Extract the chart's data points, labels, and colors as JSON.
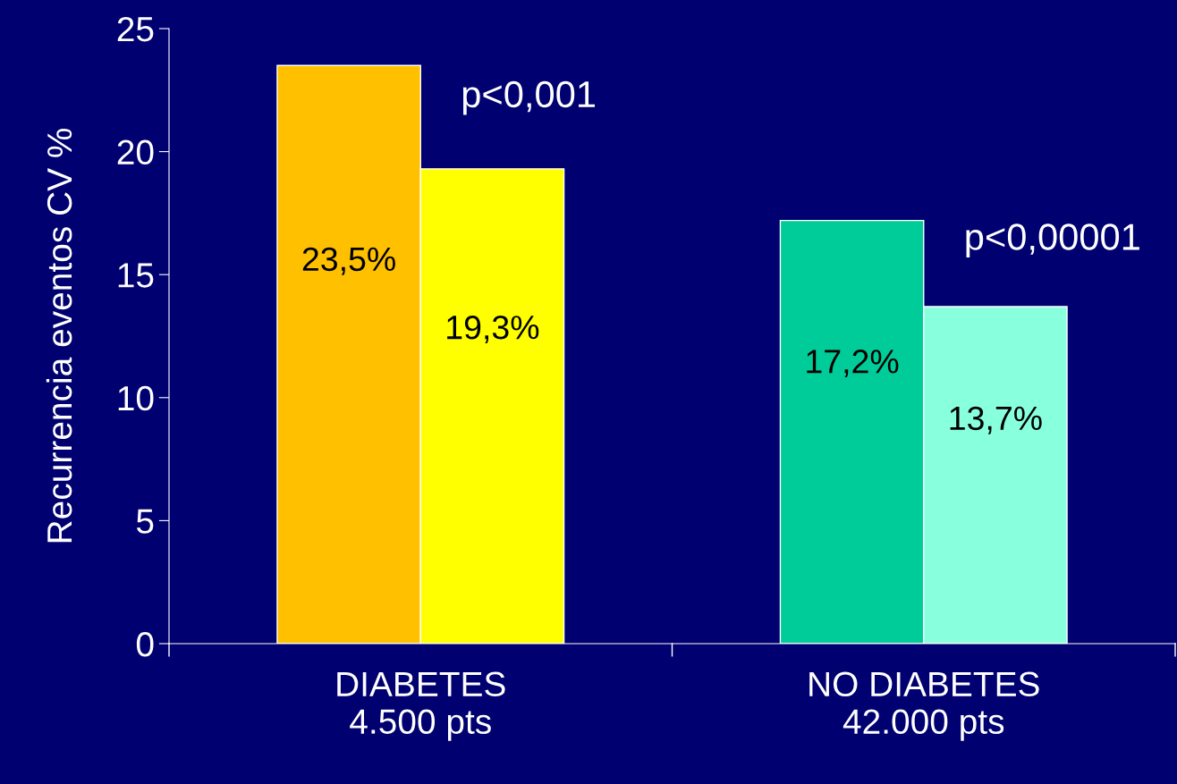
{
  "chart_data": {
    "type": "bar",
    "ylabel": "Recurrencia eventos CV %",
    "categories": [
      "DIABETES\n4.500 pts",
      "NO DIABETES\n42.000 pts"
    ],
    "series": [
      {
        "colors": [
          "#ffc000",
          "#00cc99"
        ],
        "values": [
          23.5,
          17.2
        ],
        "value_labels": [
          "23,5%",
          "17,2%"
        ]
      },
      {
        "colors": [
          "#ffff00",
          "#88ffdd"
        ],
        "values": [
          19.3,
          13.7
        ],
        "value_labels": [
          "19,3%",
          "13,7%"
        ]
      }
    ],
    "ylim": [
      0,
      25
    ],
    "yticks": [
      0,
      5,
      10,
      15,
      20,
      25
    ],
    "grid": false,
    "legend": false,
    "annotations": [
      "p<0,001",
      "p<0,00001"
    ]
  }
}
